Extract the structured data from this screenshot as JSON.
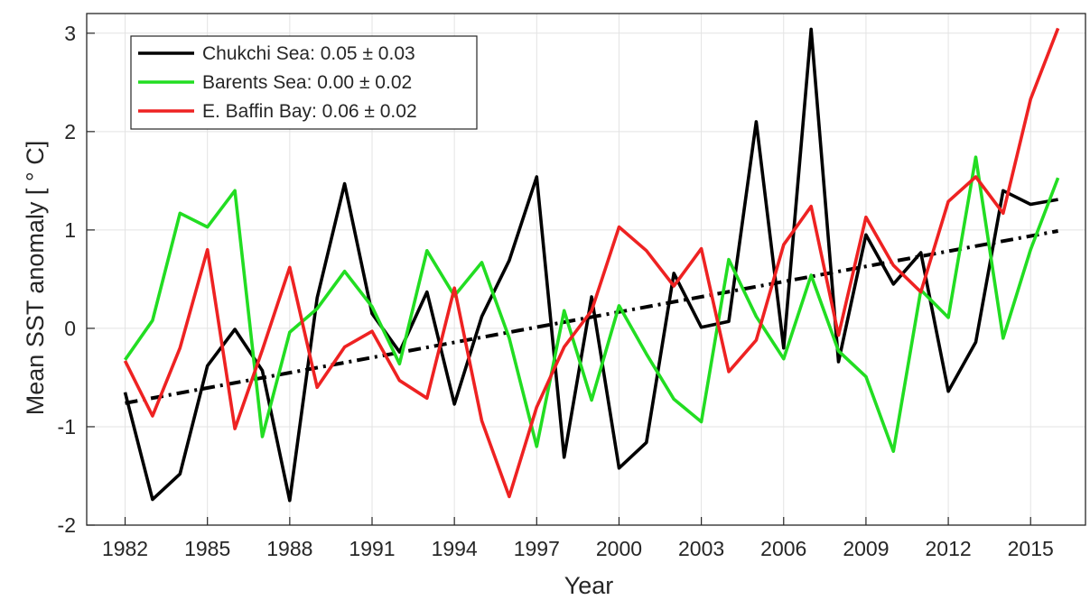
{
  "chart_data": {
    "type": "line",
    "title": "",
    "xlabel": "Year",
    "ylabel": "Mean SST anomaly [ ° C]",
    "xlim": [
      1980.6,
      2017.0
    ],
    "ylim": [
      -2,
      3.2
    ],
    "xticks": [
      1982,
      1985,
      1988,
      1991,
      1994,
      1997,
      2000,
      2003,
      2006,
      2009,
      2012,
      2015
    ],
    "xtick_labels": [
      "1982",
      "1985",
      "1988",
      "1991",
      "1994",
      "1997",
      "2000",
      "2003",
      "2006",
      "2009",
      "2012",
      "2015"
    ],
    "yticks": [
      -2,
      -1,
      0,
      1,
      2,
      3
    ],
    "ytick_labels": [
      "-2",
      "-1",
      "0",
      "1",
      "2",
      "3"
    ],
    "grid": true,
    "legend_position": "top-left",
    "x": [
      1982,
      1983,
      1984,
      1985,
      1986,
      1987,
      1988,
      1989,
      1990,
      1991,
      1992,
      1993,
      1994,
      1995,
      1996,
      1997,
      1998,
      1999,
      2000,
      2001,
      2002,
      2003,
      2004,
      2005,
      2006,
      2007,
      2008,
      2009,
      2010,
      2011,
      2012,
      2013,
      2014,
      2015,
      2016
    ],
    "series": [
      {
        "name": "Chukchi Sea: 0.05 ± 0.03",
        "color": "#000000",
        "values": [
          -0.65,
          -1.74,
          -1.48,
          -0.38,
          -0.01,
          -0.43,
          -1.75,
          0.31,
          1.47,
          0.15,
          -0.24,
          0.37,
          -0.77,
          0.12,
          0.69,
          1.54,
          -1.31,
          0.32,
          -1.42,
          -1.16,
          0.56,
          0.01,
          0.07,
          2.1,
          -0.2,
          3.04,
          -0.34,
          0.95,
          0.45,
          0.77,
          -0.64,
          -0.14,
          1.4,
          1.26,
          1.31
        ]
      },
      {
        "name": "Barents Sea:  0.00 ± 0.02",
        "color": "#22dd22",
        "values": [
          -0.32,
          0.08,
          1.17,
          1.03,
          1.4,
          -1.1,
          -0.04,
          0.2,
          0.58,
          0.22,
          -0.36,
          0.79,
          0.33,
          0.67,
          -0.1,
          -1.2,
          0.18,
          -0.73,
          0.23,
          -0.26,
          -0.72,
          -0.95,
          0.7,
          0.12,
          -0.31,
          0.54,
          -0.23,
          -0.49,
          -1.25,
          0.39,
          0.11,
          1.74,
          -0.1,
          0.8,
          1.53
        ]
      },
      {
        "name": "E. Baffin Bay: 0.06 ± 0.02",
        "color": "#ee2222",
        "values": [
          -0.33,
          -0.89,
          -0.2,
          0.8,
          -1.02,
          -0.22,
          0.62,
          -0.6,
          -0.19,
          -0.03,
          -0.53,
          -0.71,
          0.41,
          -0.94,
          -1.71,
          -0.8,
          -0.19,
          0.18,
          1.03,
          0.79,
          0.43,
          0.81,
          -0.44,
          -0.12,
          0.85,
          1.24,
          -0.07,
          1.13,
          0.64,
          0.37,
          1.29,
          1.54,
          1.17,
          2.33,
          3.05
        ]
      }
    ],
    "trend": {
      "style": "dash-dot",
      "color": "#000000",
      "x": [
        1982,
        2016
      ],
      "values": [
        -0.76,
        0.99
      ]
    }
  }
}
